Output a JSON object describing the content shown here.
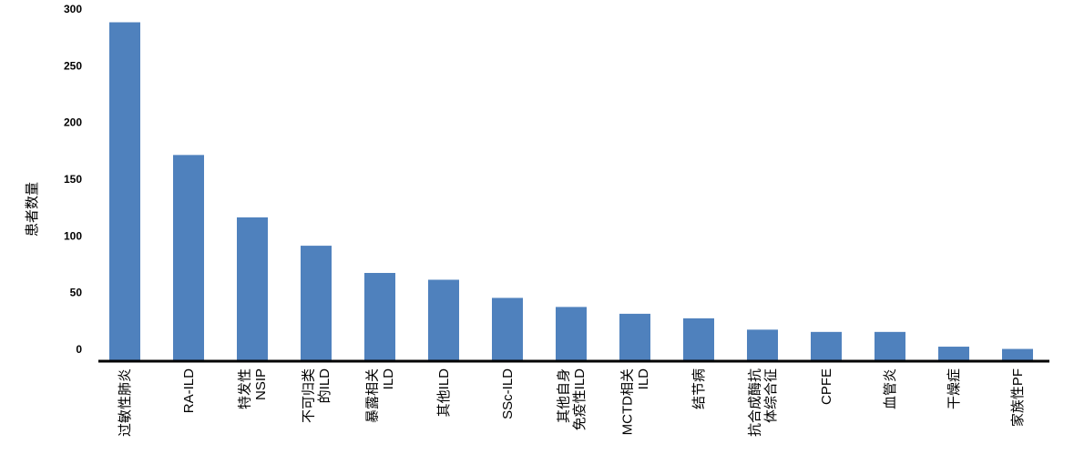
{
  "chart_data": {
    "type": "bar",
    "y_label": "患者数量",
    "categories": [
      "过敏性肺炎",
      "RA-ILD",
      "特发性\nNSIP",
      "不可归类\n的ILD",
      "暴露相关\nILD",
      "其他ILD",
      "SSc-ILD",
      "其他自身\n免疫性ILD",
      "MCTD相关\nILD",
      "结节病",
      "抗合成酶抗\n体综合征",
      "CPFE",
      "血管炎",
      "干燥症",
      "家族性PF"
    ],
    "values": [
      298,
      181,
      126,
      101,
      77,
      71,
      55,
      47,
      41,
      37,
      27,
      25,
      25,
      12,
      10
    ],
    "color": "#4f81bd",
    "ylim": [
      0,
      300
    ],
    "yticks": [
      0,
      50,
      100,
      150,
      200,
      250,
      300
    ],
    "grid": false
  }
}
